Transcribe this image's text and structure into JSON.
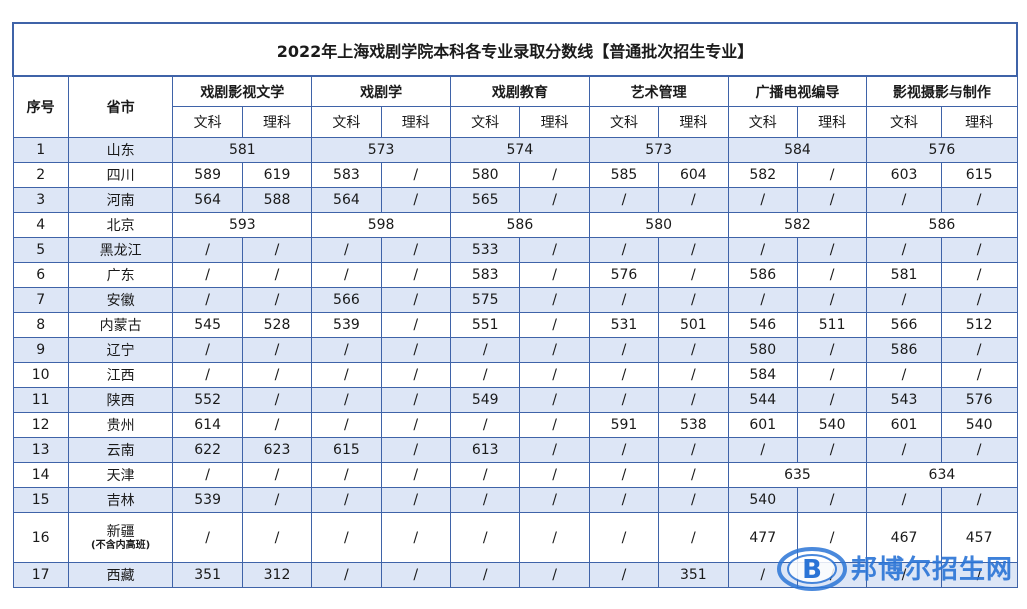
{
  "title": "2022年上海戏剧学院本科各专业录取分数线【普通批次招生专业】",
  "headers": {
    "index": "序号",
    "province": "省市",
    "majors": [
      "戏剧影视文学",
      "戏剧学",
      "戏剧教育",
      "艺术管理",
      "广播电视编导",
      "影视摄影与制作"
    ],
    "sub_wen": "文科",
    "sub_li": "理科"
  },
  "rows": [
    {
      "idx": "1",
      "prov": "山东",
      "merged": [
        "581",
        "573",
        "574",
        "573",
        "584",
        "576"
      ]
    },
    {
      "idx": "2",
      "prov": "四川",
      "cells": [
        "589",
        "619",
        "583",
        "/",
        "580",
        "/",
        "585",
        "604",
        "582",
        "/",
        "603",
        "615"
      ]
    },
    {
      "idx": "3",
      "prov": "河南",
      "cells": [
        "564",
        "588",
        "564",
        "/",
        "565",
        "/",
        "/",
        "/",
        "/",
        "/",
        "/",
        "/"
      ]
    },
    {
      "idx": "4",
      "prov": "北京",
      "merged": [
        "593",
        "598",
        "586",
        "580",
        "582",
        "586"
      ]
    },
    {
      "idx": "5",
      "prov": "黑龙江",
      "cells": [
        "/",
        "/",
        "/",
        "/",
        "533",
        "/",
        "/",
        "/",
        "/",
        "/",
        "/",
        "/"
      ]
    },
    {
      "idx": "6",
      "prov": "广东",
      "cells": [
        "/",
        "/",
        "/",
        "/",
        "583",
        "/",
        "576",
        "/",
        "586",
        "/",
        "581",
        "/"
      ]
    },
    {
      "idx": "7",
      "prov": "安徽",
      "cells": [
        "/",
        "/",
        "566",
        "/",
        "575",
        "/",
        "/",
        "/",
        "/",
        "/",
        "/",
        "/"
      ]
    },
    {
      "idx": "8",
      "prov": "内蒙古",
      "cells": [
        "545",
        "528",
        "539",
        "/",
        "551",
        "/",
        "531",
        "501",
        "546",
        "511",
        "566",
        "512"
      ]
    },
    {
      "idx": "9",
      "prov": "辽宁",
      "cells": [
        "/",
        "/",
        "/",
        "/",
        "/",
        "/",
        "/",
        "/",
        "580",
        "/",
        "586",
        "/"
      ]
    },
    {
      "idx": "10",
      "prov": "江西",
      "cells": [
        "/",
        "/",
        "/",
        "/",
        "/",
        "/",
        "/",
        "/",
        "584",
        "/",
        "/",
        "/"
      ]
    },
    {
      "idx": "11",
      "prov": "陕西",
      "cells": [
        "552",
        "/",
        "/",
        "/",
        "549",
        "/",
        "/",
        "/",
        "544",
        "/",
        "543",
        "576"
      ]
    },
    {
      "idx": "12",
      "prov": "贵州",
      "cells": [
        "614",
        "/",
        "/",
        "/",
        "/",
        "/",
        "591",
        "538",
        "601",
        "540",
        "601",
        "540"
      ]
    },
    {
      "idx": "13",
      "prov": "云南",
      "cells": [
        "622",
        "623",
        "615",
        "/",
        "613",
        "/",
        "/",
        "/",
        "/",
        "/",
        "/",
        "/"
      ]
    },
    {
      "idx": "14",
      "prov": "天津",
      "cells": [
        "/",
        "/",
        "/",
        "/",
        "/",
        "/",
        "/",
        "/"
      ],
      "tail_merged": [
        "635",
        "634"
      ]
    },
    {
      "idx": "15",
      "prov": "吉林",
      "cells": [
        "539",
        "/",
        "/",
        "/",
        "/",
        "/",
        "/",
        "/",
        "540",
        "/",
        "/",
        "/"
      ]
    },
    {
      "idx": "16",
      "prov": "新疆",
      "prov_note": "(不含内高班)",
      "cells": [
        "/",
        "/",
        "/",
        "/",
        "/",
        "/",
        "/",
        "/",
        "477",
        "/",
        "467",
        "457"
      ]
    },
    {
      "idx": "17",
      "prov": "西藏",
      "cells": [
        "351",
        "312",
        "/",
        "/",
        "/",
        "/",
        "/",
        "351",
        "/",
        "/",
        "/",
        "/"
      ]
    }
  ],
  "watermark": {
    "text": "邦博尔招生网",
    "logo_letter": "B"
  },
  "colors": {
    "border": "#3f63a8",
    "stripe": "#dde6f6",
    "watermark": "#2a74d6"
  }
}
